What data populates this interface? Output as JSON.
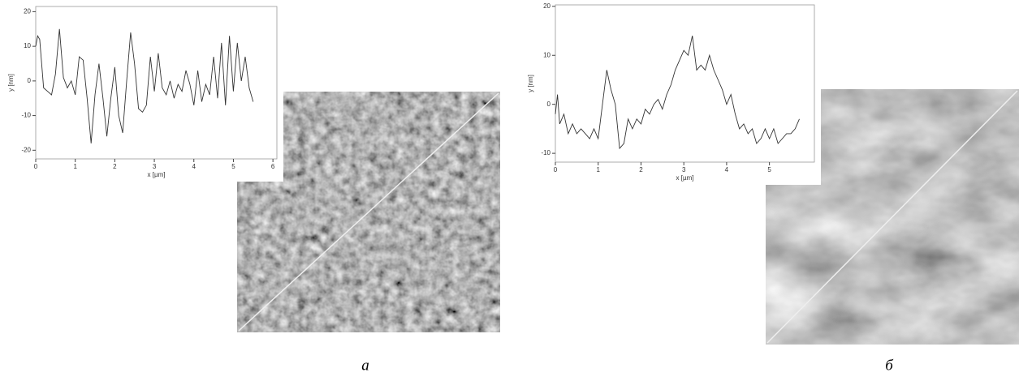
{
  "chart_data": [
    {
      "type": "line",
      "caption": "а",
      "x_label": "x [µm]",
      "y_label": "y [nm]",
      "xlim": [
        0,
        6.1
      ],
      "ylim": [
        -22.5,
        21.5
      ],
      "xticks": [
        0,
        1,
        2,
        3,
        4,
        5,
        6
      ],
      "yticks": [
        -20,
        -10,
        0,
        10,
        20
      ],
      "color": "#333333",
      "x": [
        0,
        0.05,
        0.1,
        0.2,
        0.3,
        0.4,
        0.5,
        0.6,
        0.7,
        0.8,
        0.9,
        1.0,
        1.1,
        1.2,
        1.3,
        1.4,
        1.5,
        1.6,
        1.7,
        1.8,
        1.9,
        2.0,
        2.1,
        2.2,
        2.3,
        2.4,
        2.5,
        2.6,
        2.7,
        2.8,
        2.9,
        3.0,
        3.1,
        3.2,
        3.3,
        3.4,
        3.5,
        3.6,
        3.7,
        3.8,
        3.9,
        4.0,
        4.1,
        4.2,
        4.3,
        4.4,
        4.5,
        4.6,
        4.7,
        4.8,
        4.9,
        5.0,
        5.1,
        5.2,
        5.3,
        5.4,
        5.5
      ],
      "values": [
        10,
        13,
        12,
        -2,
        -3,
        -4,
        2,
        15,
        1,
        -2,
        0,
        -4,
        7,
        6,
        -5,
        -18,
        -4,
        5,
        -5,
        -16,
        -5,
        4,
        -10,
        -15,
        0,
        14,
        5,
        -8,
        -9,
        -7,
        7,
        -3,
        8,
        -2,
        -4,
        0,
        -5,
        -1,
        -3,
        3,
        -1,
        -7,
        3,
        -6,
        -1,
        -4,
        7,
        -5,
        11,
        -7,
        13,
        -3,
        11,
        0,
        7,
        -2,
        -6
      ]
    },
    {
      "type": "line",
      "caption": "б",
      "x_label": "x [µm]",
      "y_label": "y [nm]",
      "xlim": [
        0,
        6.05
      ],
      "ylim": [
        -11.8,
        20.3
      ],
      "xticks": [
        0,
        1,
        2,
        3,
        4,
        5
      ],
      "yticks": [
        -10,
        0,
        10,
        20
      ],
      "color": "#333333",
      "x": [
        0,
        0.05,
        0.1,
        0.2,
        0.3,
        0.4,
        0.5,
        0.6,
        0.7,
        0.8,
        0.9,
        1.0,
        1.1,
        1.2,
        1.3,
        1.4,
        1.5,
        1.6,
        1.7,
        1.8,
        1.9,
        2.0,
        2.1,
        2.2,
        2.3,
        2.4,
        2.5,
        2.6,
        2.7,
        2.8,
        2.9,
        3.0,
        3.1,
        3.2,
        3.3,
        3.4,
        3.5,
        3.6,
        3.7,
        3.8,
        3.9,
        4.0,
        4.1,
        4.2,
        4.3,
        4.4,
        4.5,
        4.6,
        4.7,
        4.8,
        4.9,
        5.0,
        5.1,
        5.2,
        5.3,
        5.4,
        5.5,
        5.6,
        5.7
      ],
      "values": [
        -2,
        2,
        -4,
        -2,
        -6,
        -4,
        -6,
        -5,
        -6,
        -7,
        -5,
        -7,
        0,
        7,
        3,
        0,
        -9,
        -8,
        -3,
        -5,
        -3,
        -4,
        -1,
        -2,
        0,
        1,
        -1,
        2,
        4,
        7,
        9,
        11,
        10,
        14,
        7,
        8,
        7,
        10,
        7,
        5,
        3,
        0,
        2,
        -2,
        -5,
        -4,
        -6,
        -5,
        -8,
        -7,
        -5,
        -7,
        -5,
        -8,
        -7,
        -6,
        -6,
        -5,
        -3
      ]
    }
  ]
}
